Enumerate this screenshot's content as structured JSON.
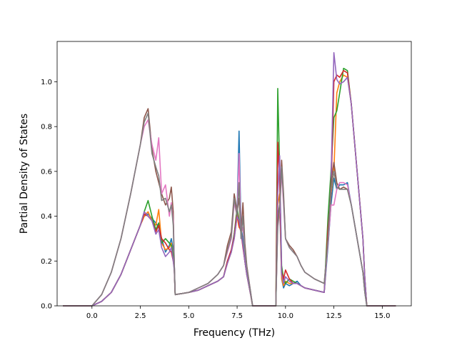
{
  "chart_data": {
    "type": "line",
    "title": "",
    "xlabel": "Frequency (THz)",
    "ylabel": "Partial Density of States",
    "xlim": [
      -1.8,
      16.5
    ],
    "ylim": [
      0.0,
      1.18
    ],
    "xticks": [
      0.0,
      2.5,
      5.0,
      7.5,
      10.0,
      12.5,
      15.0
    ],
    "xtick_labels": [
      "0.0",
      "2.5",
      "5.0",
      "7.5",
      "10.0",
      "12.5",
      "15.0"
    ],
    "yticks": [
      0.0,
      0.2,
      0.4,
      0.6,
      0.8,
      1.0
    ],
    "ytick_labels": [
      "0.0",
      "0.2",
      "0.4",
      "0.6",
      "0.8",
      "1.0"
    ],
    "grid": false,
    "legend": "none",
    "series": [
      {
        "color": "#1f77b4",
        "x": [
          -1.5,
          0.0,
          0.5,
          1.0,
          1.5,
          2.0,
          2.5,
          2.7,
          2.9,
          3.1,
          3.3,
          3.45,
          3.6,
          3.8,
          4.0,
          4.1,
          4.2,
          4.25,
          4.3,
          5.0,
          5.5,
          6.0,
          6.5,
          6.8,
          7.0,
          7.2,
          7.35,
          7.5,
          7.6,
          7.7,
          7.8,
          7.9,
          8.0,
          8.2,
          8.3,
          9.5,
          9.6,
          9.7,
          9.8,
          9.9,
          10.0,
          10.2,
          10.4,
          10.6,
          10.8,
          11.0,
          11.5,
          12.0,
          12.2,
          12.35,
          12.5,
          12.65,
          12.8,
          13.0,
          13.2,
          13.4,
          13.6,
          13.8,
          14.0,
          14.1,
          14.2,
          14.4,
          15.7
        ],
        "y": [
          0.0,
          0.0,
          0.02,
          0.06,
          0.14,
          0.25,
          0.36,
          0.4,
          0.41,
          0.39,
          0.37,
          0.35,
          0.3,
          0.24,
          0.27,
          0.3,
          0.25,
          0.2,
          0.05,
          0.06,
          0.07,
          0.09,
          0.11,
          0.13,
          0.2,
          0.25,
          0.32,
          0.42,
          0.78,
          0.35,
          0.3,
          0.22,
          0.15,
          0.05,
          0.0,
          0.0,
          0.4,
          0.45,
          0.12,
          0.08,
          0.1,
          0.09,
          0.1,
          0.11,
          0.09,
          0.08,
          0.07,
          0.06,
          0.27,
          0.45,
          0.57,
          0.52,
          0.54,
          0.54,
          0.55,
          0.45,
          0.35,
          0.25,
          0.15,
          0.06,
          0.0,
          0.0,
          0.0
        ]
      },
      {
        "color": "#ff7f0e",
        "x": [
          -1.5,
          0.0,
          0.5,
          1.0,
          1.5,
          2.0,
          2.5,
          2.7,
          2.9,
          3.1,
          3.3,
          3.45,
          3.6,
          3.8,
          4.0,
          4.1,
          4.2,
          4.25,
          4.3,
          5.0,
          5.5,
          6.0,
          6.5,
          6.8,
          7.0,
          7.2,
          7.35,
          7.5,
          7.6,
          7.7,
          7.8,
          7.9,
          8.0,
          8.2,
          8.3,
          9.5,
          9.6,
          9.7,
          9.8,
          9.9,
          10.0,
          10.2,
          10.4,
          10.6,
          10.8,
          11.0,
          11.5,
          12.0,
          12.2,
          12.35,
          12.5,
          12.65,
          12.8,
          13.0,
          13.2,
          13.4,
          13.6,
          13.8,
          14.0,
          14.1,
          14.2,
          14.4,
          15.7
        ],
        "y": [
          0.0,
          0.0,
          0.02,
          0.06,
          0.14,
          0.25,
          0.36,
          0.4,
          0.42,
          0.38,
          0.36,
          0.43,
          0.28,
          0.25,
          0.26,
          0.28,
          0.22,
          0.18,
          0.05,
          0.06,
          0.07,
          0.09,
          0.11,
          0.13,
          0.19,
          0.24,
          0.3,
          0.4,
          0.35,
          0.34,
          0.27,
          0.2,
          0.14,
          0.05,
          0.0,
          0.0,
          0.45,
          0.5,
          0.12,
          0.09,
          0.11,
          0.1,
          0.1,
          0.1,
          0.09,
          0.08,
          0.07,
          0.06,
          0.3,
          0.5,
          0.6,
          0.95,
          1.0,
          1.03,
          1.02,
          0.9,
          0.7,
          0.5,
          0.3,
          0.12,
          0.0,
          0.0,
          0.0
        ]
      },
      {
        "color": "#2ca02c",
        "x": [
          -1.5,
          0.0,
          0.5,
          1.0,
          1.5,
          2.0,
          2.5,
          2.7,
          2.9,
          3.1,
          3.3,
          3.45,
          3.6,
          3.8,
          4.0,
          4.1,
          4.2,
          4.25,
          4.3,
          5.0,
          5.5,
          6.0,
          6.5,
          6.8,
          7.0,
          7.2,
          7.35,
          7.5,
          7.6,
          7.7,
          7.8,
          7.9,
          8.0,
          8.2,
          8.3,
          9.5,
          9.6,
          9.7,
          9.8,
          9.9,
          10.0,
          10.2,
          10.4,
          10.6,
          10.8,
          11.0,
          11.5,
          12.0,
          12.2,
          12.35,
          12.5,
          12.65,
          12.8,
          13.0,
          13.2,
          13.4,
          13.6,
          13.8,
          14.0,
          14.1,
          14.2,
          14.4,
          15.7
        ],
        "y": [
          0.0,
          0.0,
          0.02,
          0.06,
          0.14,
          0.25,
          0.36,
          0.42,
          0.47,
          0.4,
          0.34,
          0.37,
          0.28,
          0.3,
          0.28,
          0.27,
          0.22,
          0.17,
          0.05,
          0.06,
          0.07,
          0.09,
          0.11,
          0.13,
          0.2,
          0.24,
          0.32,
          0.44,
          0.38,
          0.33,
          0.28,
          0.2,
          0.14,
          0.05,
          0.0,
          0.0,
          0.97,
          0.6,
          0.18,
          0.12,
          0.1,
          0.12,
          0.11,
          0.1,
          0.09,
          0.08,
          0.07,
          0.06,
          0.4,
          0.6,
          0.84,
          0.87,
          0.95,
          1.06,
          1.05,
          0.9,
          0.7,
          0.5,
          0.3,
          0.12,
          0.0,
          0.0,
          0.0
        ]
      },
      {
        "color": "#d62728",
        "x": [
          -1.5,
          0.0,
          0.5,
          1.0,
          1.5,
          2.0,
          2.5,
          2.7,
          2.9,
          3.1,
          3.3,
          3.45,
          3.6,
          3.8,
          4.0,
          4.1,
          4.2,
          4.25,
          4.3,
          5.0,
          5.5,
          6.0,
          6.5,
          6.8,
          7.0,
          7.2,
          7.35,
          7.5,
          7.6,
          7.7,
          7.8,
          7.9,
          8.0,
          8.2,
          8.3,
          9.5,
          9.6,
          9.7,
          9.8,
          9.9,
          10.0,
          10.2,
          10.4,
          10.6,
          10.8,
          11.0,
          11.5,
          12.0,
          12.2,
          12.35,
          12.5,
          12.65,
          12.8,
          13.0,
          13.2,
          13.4,
          13.6,
          13.8,
          14.0,
          14.1,
          14.2,
          14.4,
          15.7
        ],
        "y": [
          0.0,
          0.0,
          0.02,
          0.06,
          0.14,
          0.25,
          0.36,
          0.41,
          0.4,
          0.38,
          0.33,
          0.36,
          0.3,
          0.28,
          0.25,
          0.24,
          0.2,
          0.17,
          0.05,
          0.06,
          0.07,
          0.09,
          0.11,
          0.13,
          0.2,
          0.25,
          0.31,
          0.42,
          0.36,
          0.33,
          0.26,
          0.2,
          0.14,
          0.05,
          0.0,
          0.0,
          0.73,
          0.55,
          0.15,
          0.12,
          0.16,
          0.12,
          0.1,
          0.1,
          0.09,
          0.08,
          0.07,
          0.06,
          0.35,
          0.5,
          1.0,
          1.03,
          1.02,
          1.05,
          1.04,
          0.9,
          0.7,
          0.5,
          0.3,
          0.12,
          0.0,
          0.0,
          0.0
        ]
      },
      {
        "color": "#9467bd",
        "x": [
          -1.5,
          0.0,
          0.5,
          1.0,
          1.5,
          2.0,
          2.5,
          2.7,
          2.9,
          3.1,
          3.3,
          3.45,
          3.6,
          3.8,
          4.0,
          4.1,
          4.2,
          4.25,
          4.3,
          5.0,
          5.5,
          6.0,
          6.5,
          6.8,
          7.0,
          7.2,
          7.35,
          7.5,
          7.6,
          7.7,
          7.8,
          7.9,
          8.0,
          8.2,
          8.3,
          9.5,
          9.6,
          9.7,
          9.8,
          9.9,
          10.0,
          10.2,
          10.4,
          10.6,
          10.8,
          11.0,
          11.5,
          12.0,
          12.2,
          12.35,
          12.5,
          12.65,
          12.8,
          13.0,
          13.2,
          13.4,
          13.6,
          13.8,
          14.0,
          14.1,
          14.2,
          14.4,
          15.7
        ],
        "y": [
          0.0,
          0.0,
          0.02,
          0.06,
          0.14,
          0.25,
          0.36,
          0.42,
          0.4,
          0.38,
          0.32,
          0.34,
          0.26,
          0.22,
          0.24,
          0.26,
          0.2,
          0.16,
          0.05,
          0.06,
          0.07,
          0.09,
          0.11,
          0.13,
          0.19,
          0.24,
          0.3,
          0.4,
          0.38,
          0.33,
          0.27,
          0.2,
          0.14,
          0.05,
          0.0,
          0.0,
          0.5,
          0.67,
          0.14,
          0.1,
          0.13,
          0.11,
          0.1,
          0.1,
          0.09,
          0.08,
          0.07,
          0.06,
          0.3,
          0.55,
          1.13,
          1.01,
          0.99,
          1.0,
          1.02,
          0.9,
          0.7,
          0.5,
          0.3,
          0.12,
          0.0,
          0.0,
          0.0
        ]
      },
      {
        "color": "#8c564b",
        "x": [
          -1.5,
          0.0,
          0.5,
          1.0,
          1.5,
          2.0,
          2.5,
          2.7,
          2.9,
          3.1,
          3.3,
          3.45,
          3.6,
          3.8,
          4.0,
          4.1,
          4.2,
          4.25,
          4.3,
          5.0,
          5.5,
          6.0,
          6.5,
          6.8,
          7.0,
          7.2,
          7.35,
          7.5,
          7.6,
          7.7,
          7.8,
          7.9,
          8.0,
          8.2,
          8.3,
          9.5,
          9.6,
          9.7,
          9.8,
          9.9,
          10.0,
          10.2,
          10.4,
          10.6,
          10.8,
          11.0,
          11.5,
          12.0,
          12.2,
          12.35,
          12.5,
          12.65,
          12.8,
          13.0,
          13.2,
          13.4,
          13.6,
          13.8,
          14.0,
          14.1,
          14.2,
          14.4,
          15.7
        ],
        "y": [
          0.0,
          0.0,
          0.05,
          0.15,
          0.3,
          0.5,
          0.72,
          0.84,
          0.88,
          0.7,
          0.6,
          0.55,
          0.5,
          0.45,
          0.48,
          0.53,
          0.42,
          0.2,
          0.05,
          0.06,
          0.08,
          0.1,
          0.14,
          0.18,
          0.27,
          0.33,
          0.5,
          0.42,
          0.48,
          0.32,
          0.46,
          0.28,
          0.18,
          0.06,
          0.0,
          0.0,
          0.38,
          0.45,
          0.65,
          0.5,
          0.3,
          0.27,
          0.25,
          0.22,
          0.18,
          0.15,
          0.12,
          0.1,
          0.3,
          0.55,
          0.64,
          0.55,
          0.52,
          0.53,
          0.52,
          0.45,
          0.35,
          0.25,
          0.15,
          0.06,
          0.0,
          0.0,
          0.0
        ]
      },
      {
        "color": "#e377c2",
        "x": [
          -1.5,
          0.0,
          0.5,
          1.0,
          1.5,
          2.0,
          2.5,
          2.7,
          2.9,
          3.1,
          3.3,
          3.45,
          3.6,
          3.8,
          4.0,
          4.1,
          4.2,
          4.25,
          4.3,
          5.0,
          5.5,
          6.0,
          6.5,
          6.8,
          7.0,
          7.2,
          7.35,
          7.5,
          7.6,
          7.7,
          7.8,
          7.9,
          8.0,
          8.2,
          8.3,
          9.5,
          9.6,
          9.7,
          9.8,
          9.9,
          10.0,
          10.2,
          10.4,
          10.6,
          10.8,
          11.0,
          11.5,
          12.0,
          12.2,
          12.35,
          12.5,
          12.65,
          12.8,
          13.0,
          13.2,
          13.4,
          13.6,
          13.8,
          14.0,
          14.1,
          14.2,
          14.4,
          15.7
        ],
        "y": [
          0.0,
          0.0,
          0.05,
          0.15,
          0.3,
          0.5,
          0.72,
          0.8,
          0.83,
          0.72,
          0.65,
          0.75,
          0.5,
          0.54,
          0.4,
          0.46,
          0.38,
          0.2,
          0.05,
          0.06,
          0.08,
          0.1,
          0.14,
          0.18,
          0.24,
          0.3,
          0.46,
          0.4,
          0.68,
          0.32,
          0.35,
          0.25,
          0.17,
          0.06,
          0.0,
          0.0,
          0.35,
          0.42,
          0.6,
          0.45,
          0.3,
          0.26,
          0.24,
          0.22,
          0.18,
          0.15,
          0.12,
          0.1,
          0.28,
          0.45,
          0.45,
          0.52,
          0.55,
          0.55,
          0.54,
          0.45,
          0.35,
          0.25,
          0.15,
          0.06,
          0.0,
          0.0,
          0.0
        ]
      },
      {
        "color": "#7f7f7f",
        "x": [
          -1.5,
          0.0,
          0.5,
          1.0,
          1.5,
          2.0,
          2.5,
          2.7,
          2.9,
          3.1,
          3.3,
          3.45,
          3.6,
          3.8,
          4.0,
          4.1,
          4.2,
          4.25,
          4.3,
          5.0,
          5.5,
          6.0,
          6.5,
          6.8,
          7.0,
          7.2,
          7.35,
          7.5,
          7.6,
          7.7,
          7.8,
          7.9,
          8.0,
          8.2,
          8.3,
          9.5,
          9.6,
          9.7,
          9.8,
          9.9,
          10.0,
          10.2,
          10.4,
          10.6,
          10.8,
          11.0,
          11.5,
          12.0,
          12.2,
          12.35,
          12.5,
          12.65,
          12.8,
          13.0,
          13.2,
          13.4,
          13.6,
          13.8,
          14.0,
          14.1,
          14.2,
          14.4,
          15.7
        ],
        "y": [
          0.0,
          0.0,
          0.05,
          0.15,
          0.3,
          0.5,
          0.72,
          0.82,
          0.86,
          0.68,
          0.62,
          0.58,
          0.47,
          0.48,
          0.42,
          0.45,
          0.36,
          0.2,
          0.05,
          0.06,
          0.08,
          0.1,
          0.14,
          0.18,
          0.25,
          0.31,
          0.48,
          0.4,
          0.55,
          0.3,
          0.4,
          0.26,
          0.17,
          0.06,
          0.0,
          0.0,
          0.36,
          0.43,
          0.62,
          0.48,
          0.3,
          0.26,
          0.24,
          0.22,
          0.18,
          0.15,
          0.12,
          0.1,
          0.3,
          0.52,
          0.6,
          0.53,
          0.52,
          0.52,
          0.52,
          0.45,
          0.35,
          0.25,
          0.15,
          0.06,
          0.0,
          0.0,
          0.0
        ]
      }
    ]
  }
}
